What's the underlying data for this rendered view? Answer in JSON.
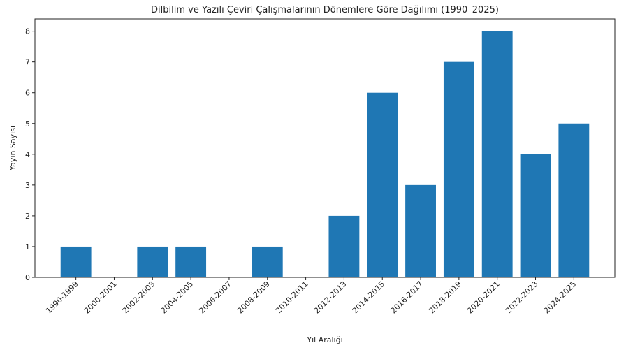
{
  "chart_data": {
    "type": "bar",
    "title": "Dilbilim ve Yazılı Çeviri Çalışmalarının Dönemlere Göre Dağılımı (1990–2025)",
    "xlabel": "Yıl Aralığı",
    "ylabel": "Yayın Sayısı",
    "categories": [
      "1990-1999",
      "2000-2001",
      "2002-2003",
      "2004-2005",
      "2006-2007",
      "2008-2009",
      "2010-2011",
      "2012-2013",
      "2014-2015",
      "2016-2017",
      "2018-2019",
      "2020-2021",
      "2022-2023",
      "2024-2025"
    ],
    "values": [
      1,
      0,
      1,
      1,
      0,
      1,
      0,
      2,
      6,
      3,
      7,
      8,
      4,
      5
    ],
    "color": "#1f77b4",
    "ylim": [
      0,
      8.4
    ],
    "yticks": [
      0,
      1,
      2,
      3,
      4,
      5,
      6,
      7,
      8
    ],
    "grid": false
  }
}
